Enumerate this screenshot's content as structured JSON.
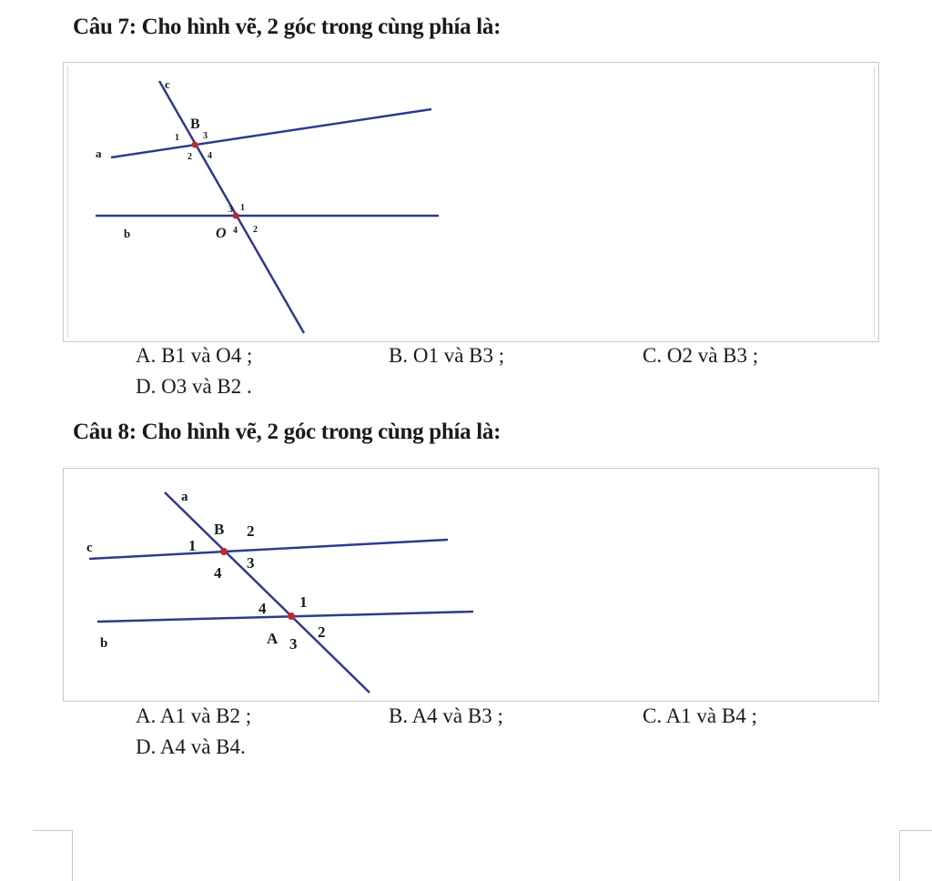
{
  "q7": {
    "title": "Câu 7: Cho hình vẽ, 2 góc trong cùng phía là:",
    "figure": {
      "line_labels": [
        "c",
        "a",
        "b"
      ],
      "point_labels": [
        "B",
        "O"
      ],
      "angle_labels_B": [
        "1",
        "3",
        "2",
        "4"
      ],
      "angle_labels_O": [
        "3",
        "1",
        "4",
        "2"
      ]
    },
    "options": {
      "a": "A. B1 và O4 ;",
      "b": "B. O1 và B3 ;",
      "c": "C. O2 và B3 ;",
      "d": "D. O3 và B2 ."
    }
  },
  "q8": {
    "title": "Câu 8: Cho hình vẽ, 2 góc trong cùng phía là:",
    "figure": {
      "line_labels": [
        "a",
        "c",
        "b"
      ],
      "point_labels": [
        "B",
        "A"
      ],
      "angle_labels_B": [
        "2",
        "1",
        "4",
        "3"
      ],
      "angle_labels_A": [
        "4",
        "1",
        "3",
        "2"
      ]
    },
    "options": {
      "a": "A. A1 và B2 ;",
      "b": "B. A4 và B3 ;",
      "c": "C. A1 và B4 ;",
      "d": "D. A4 và B4."
    }
  },
  "colors": {
    "line": "#2e3a8c",
    "point": "#c0282d",
    "border": "#c8c8c8"
  }
}
